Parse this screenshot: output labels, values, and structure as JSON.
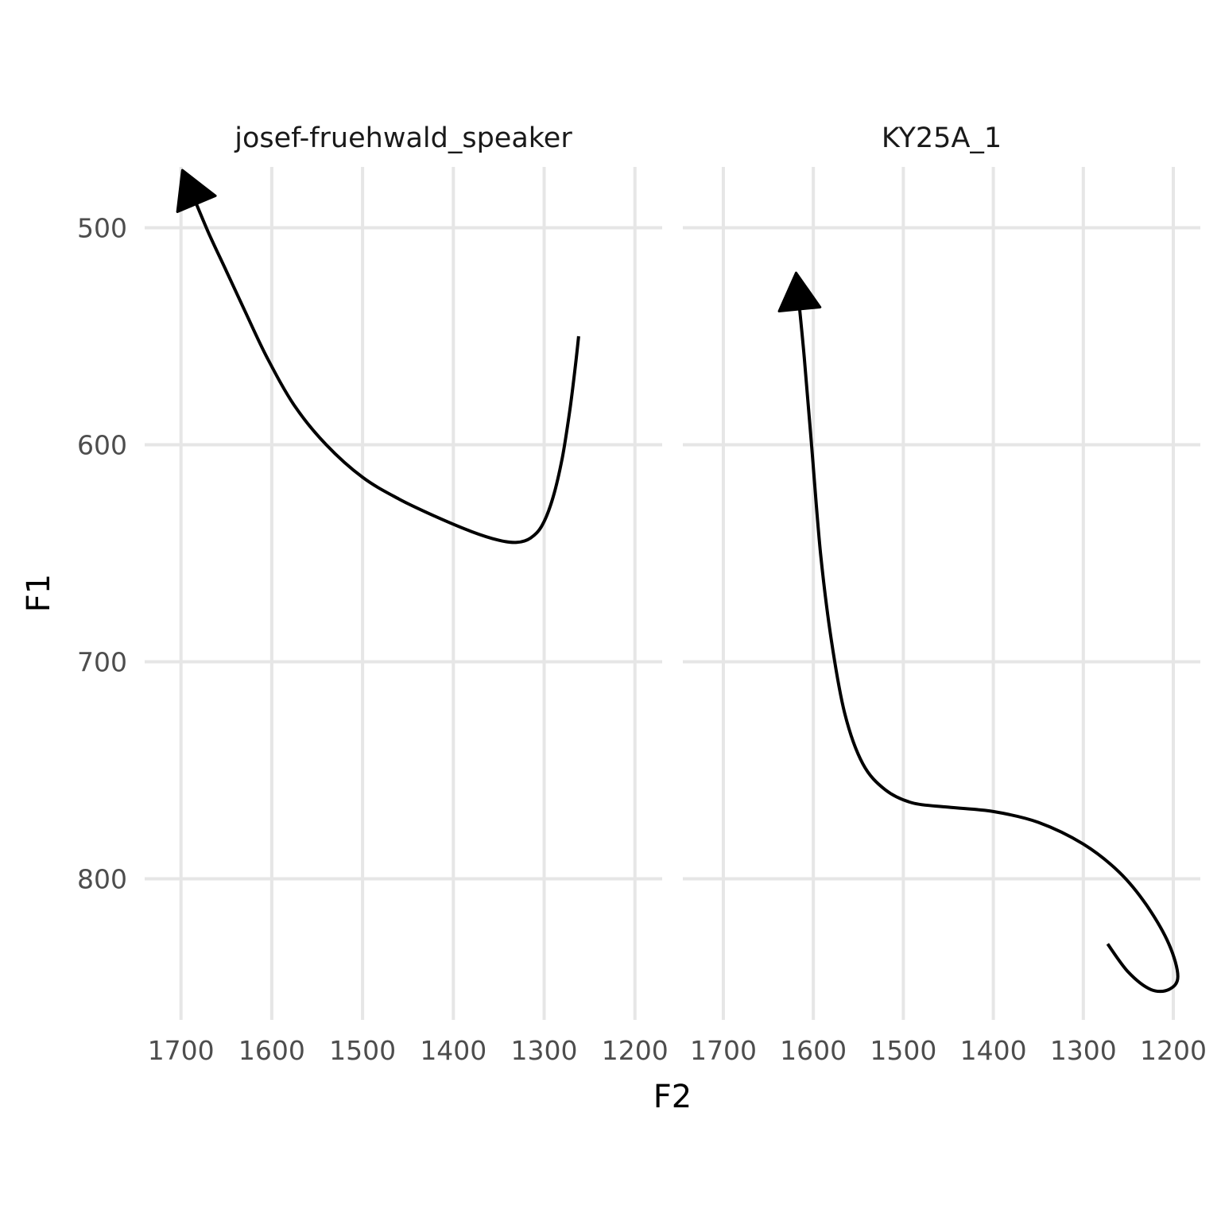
{
  "chart_data": {
    "type": "line",
    "xlabel": "F2",
    "ylabel": "F1",
    "x_reversed": true,
    "y_reversed": true,
    "grid": true,
    "legend": "none",
    "panels": [
      {
        "title": "josef-fruehwald_speaker",
        "xlim": [
          1170,
          1740
        ],
        "ylim": [
          472,
          865
        ],
        "x_ticks": [
          1700,
          1600,
          1500,
          1400,
          1300,
          1200
        ],
        "y_ticks": [
          500,
          600,
          700,
          800
        ],
        "series": [
          {
            "arrow_at_end": true,
            "points": [
              {
                "x": 1262,
                "y": 550
              },
              {
                "x": 1266,
                "y": 565
              },
              {
                "x": 1272,
                "y": 585
              },
              {
                "x": 1280,
                "y": 606
              },
              {
                "x": 1290,
                "y": 624
              },
              {
                "x": 1302,
                "y": 637
              },
              {
                "x": 1315,
                "y": 643
              },
              {
                "x": 1330,
                "y": 645
              },
              {
                "x": 1350,
                "y": 644
              },
              {
                "x": 1380,
                "y": 640
              },
              {
                "x": 1420,
                "y": 633
              },
              {
                "x": 1460,
                "y": 625
              },
              {
                "x": 1500,
                "y": 615
              },
              {
                "x": 1540,
                "y": 600
              },
              {
                "x": 1575,
                "y": 582
              },
              {
                "x": 1605,
                "y": 560
              },
              {
                "x": 1630,
                "y": 538
              },
              {
                "x": 1650,
                "y": 520
              },
              {
                "x": 1670,
                "y": 502
              },
              {
                "x": 1690,
                "y": 482
              }
            ]
          }
        ]
      },
      {
        "title": "KY25A_1",
        "xlim": [
          1170,
          1745
        ],
        "ylim": [
          472,
          865
        ],
        "x_ticks": [
          1700,
          1600,
          1500,
          1400,
          1300,
          1200
        ],
        "y_ticks": [
          500,
          600,
          700,
          800
        ],
        "series": [
          {
            "arrow_at_end": true,
            "points": [
              {
                "x": 1273,
                "y": 830
              },
              {
                "x": 1250,
                "y": 843
              },
              {
                "x": 1225,
                "y": 851
              },
              {
                "x": 1205,
                "y": 851
              },
              {
                "x": 1195,
                "y": 845
              },
              {
                "x": 1205,
                "y": 830
              },
              {
                "x": 1230,
                "y": 812
              },
              {
                "x": 1260,
                "y": 797
              },
              {
                "x": 1300,
                "y": 784
              },
              {
                "x": 1350,
                "y": 774
              },
              {
                "x": 1400,
                "y": 769
              },
              {
                "x": 1450,
                "y": 767
              },
              {
                "x": 1490,
                "y": 765
              },
              {
                "x": 1520,
                "y": 759
              },
              {
                "x": 1545,
                "y": 747
              },
              {
                "x": 1565,
                "y": 724
              },
              {
                "x": 1580,
                "y": 690
              },
              {
                "x": 1592,
                "y": 650
              },
              {
                "x": 1602,
                "y": 600
              },
              {
                "x": 1610,
                "y": 560
              },
              {
                "x": 1617,
                "y": 530
              }
            ]
          }
        ]
      }
    ]
  }
}
